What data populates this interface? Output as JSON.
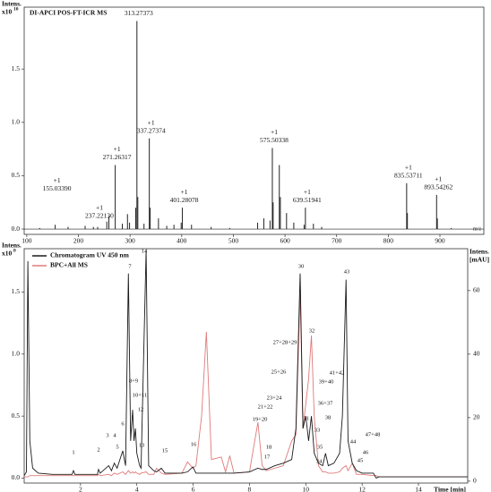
{
  "chart_data": [
    {
      "type": "stem",
      "title": "DI-APCI POS-FT-ICR MS",
      "y_label": "Intens.",
      "y_scale": "x10",
      "y_scale_exp": "10",
      "x_label": "m/z",
      "color": "#222222",
      "x": [
        125,
        155.0339,
        180,
        213,
        229,
        237.2213,
        255,
        259,
        271.26317,
        285,
        295,
        299,
        311,
        313.27373,
        315,
        327,
        337.27374,
        339,
        355,
        371,
        385,
        399,
        401.28078,
        419,
        457,
        493,
        547,
        559,
        571,
        575.50338,
        577,
        589,
        591,
        603,
        617,
        637,
        639.51941,
        655,
        671,
        835.53711,
        837,
        893.54262,
        895,
        922
      ],
      "values": [
        0.01,
        0.04,
        0.02,
        0.03,
        0.02,
        0.02,
        0.07,
        0.12,
        0.6,
        0.05,
        0.14,
        0.06,
        0.2,
        1.95,
        0.3,
        0.05,
        0.85,
        0.2,
        0.1,
        0.03,
        0.04,
        0.06,
        0.2,
        0.04,
        0.02,
        0.01,
        0.06,
        0.1,
        0.08,
        0.76,
        0.25,
        0.6,
        0.3,
        0.15,
        0.06,
        0.04,
        0.2,
        0.05,
        0.02,
        0.43,
        0.15,
        0.32,
        0.1,
        0.01
      ],
      "annotations": [
        {
          "charge": "+1",
          "label": "155.03390",
          "x": 155.0339
        },
        {
          "charge": "+1",
          "label": "237.22130",
          "x": 237.2213
        },
        {
          "charge": "+1",
          "label": "271.26317",
          "x": 271.26317
        },
        {
          "label": "313.27373",
          "x": 313.27373
        },
        {
          "charge": "+1",
          "label": "337.27374",
          "x": 337.27374
        },
        {
          "charge": "+1",
          "label": "401.28078",
          "x": 401.28078
        },
        {
          "charge": "+1",
          "label": "575.50338",
          "x": 575.50338
        },
        {
          "charge": "+1",
          "label": "639.51941",
          "x": 639.51941
        },
        {
          "charge": "+1",
          "label": "835.53711",
          "x": 835.53711
        },
        {
          "charge": "+1",
          "label": "893.54262",
          "x": 893.54262
        }
      ],
      "xlim": [
        95,
        985
      ],
      "xticks": [
        100,
        200,
        300,
        400,
        500,
        600,
        700,
        800,
        900
      ],
      "ylim": [
        -0.05,
        2.08
      ],
      "yticks": [
        {
          "value": 0,
          "label": "0.0"
        },
        {
          "value": 0.5,
          "label": "0.5"
        },
        {
          "value": 1,
          "label": "1.0"
        },
        {
          "value": 1.5,
          "label": "1.5"
        }
      ]
    },
    {
      "type": "line",
      "y_label": "Intens.",
      "y_scale": "x10",
      "y_scale_exp": "8",
      "y2_label": "Intens.",
      "y2_unit": "[mAU]",
      "x_label": "Time [min]",
      "x": [
        0,
        0.08,
        0.13,
        0.2,
        0.3,
        0.5,
        1.0,
        1.7,
        1.75,
        1.8,
        2.6,
        2.64,
        2.7,
        3.0,
        3.1,
        3.2,
        3.3,
        3.5,
        3.6,
        3.7,
        3.78,
        3.85,
        3.9,
        3.95,
        4.0,
        4.1,
        4.15,
        4.33,
        4.42,
        4.6,
        4.7,
        4.87,
        5.0,
        5.6,
        5.8,
        5.99,
        6.1,
        6.3,
        6.47,
        6.65,
        7.0,
        7.15,
        7.3,
        7.45,
        8.0,
        8.3,
        8.45,
        8.6,
        8.9,
        9.2,
        9.5,
        9.65,
        9.8,
        9.9,
        10.0,
        10.1,
        10.2,
        10.3,
        10.45,
        10.6,
        10.7,
        10.8,
        11.0,
        11.2,
        11.3,
        11.43,
        11.5,
        11.65,
        11.8,
        12.0,
        12.4,
        12.5,
        12.6,
        15.75
      ],
      "series": [
        {
          "name": "Chromatogram UV 450 nm",
          "color": "#1a1a1a",
          "values": [
            0.02,
            0.05,
            1.75,
            0.3,
            0.08,
            0.04,
            0.03,
            0.03,
            0.06,
            0.03,
            0.03,
            0.07,
            0.04,
            0.1,
            0.06,
            0.12,
            0.08,
            0.22,
            0.1,
            1.65,
            0.3,
            0.55,
            0.3,
            0.4,
            0.2,
            0.1,
            0.08,
            1.84,
            0.1,
            0.06,
            0.05,
            0.08,
            0.04,
            0.04,
            0.05,
            0.09,
            0.04,
            0.04,
            0.04,
            0.04,
            0.04,
            0.04,
            0.04,
            0.04,
            0.05,
            0.08,
            0.07,
            0.07,
            0.1,
            0.12,
            0.15,
            0.4,
            1.65,
            0.4,
            0.5,
            0.3,
            0.5,
            0.2,
            0.12,
            0.1,
            0.2,
            0.1,
            0.12,
            0.2,
            0.5,
            1.6,
            0.3,
            0.12,
            0.06,
            0.04,
            0.04,
            0,
            0.01,
            0.01
          ]
        },
        {
          "name": "BPC+All MS",
          "color": "#e07a7a",
          "values": [
            0.01,
            0.01,
            0.01,
            0.02,
            0.02,
            0.02,
            0.02,
            0.02,
            0.02,
            0.02,
            0.02,
            0.03,
            0.02,
            0.03,
            0.02,
            0.04,
            0.03,
            0.05,
            0.03,
            0.06,
            0.04,
            0.05,
            0.04,
            0.05,
            0.04,
            0.03,
            0.04,
            0.05,
            0.03,
            0.03,
            0.08,
            0.04,
            0.03,
            0.04,
            0.13,
            0.08,
            0.1,
            0.5,
            1.18,
            0.15,
            0.17,
            0.05,
            0.18,
            0.04,
            0.05,
            0.45,
            0.1,
            0.06,
            0.08,
            0.1,
            0.3,
            0.35,
            1.5,
            0.4,
            0.6,
            0.8,
            1.15,
            0.5,
            0.1,
            0.05,
            0.05,
            0.04,
            0.04,
            0.05,
            0.08,
            0.1,
            0.06,
            0.12,
            0.03,
            0.03,
            0.02,
            0.02,
            0.01,
            0.01
          ]
        }
      ],
      "peak_labels": [
        "1",
        "2",
        "3",
        "4",
        "5",
        "6",
        "7",
        "8+9",
        "10+11",
        "12",
        "13",
        "14",
        "15",
        "16",
        "17",
        "18",
        "19+20",
        "21+22",
        "23+24",
        "25+26",
        "27+28+29",
        "30",
        "31",
        "32",
        "33",
        "34",
        "35",
        "36+37",
        "38",
        "39+40",
        "41+42",
        "43",
        "44",
        "45",
        "46",
        "47+48"
      ],
      "xlim": [
        0,
        15.75
      ],
      "xticks": [
        2,
        4,
        6,
        8,
        10,
        12,
        14
      ],
      "ylim": [
        -0.04,
        1.85
      ],
      "yticks": [
        {
          "value": 0,
          "label": "0.0"
        },
        {
          "value": 0.5,
          "label": "0.5"
        },
        {
          "value": 1,
          "label": "1.0"
        },
        {
          "value": 1.5,
          "label": "1.5"
        }
      ],
      "y2lim": [
        -0.6,
        73.2
      ],
      "y2ticks": [
        0,
        20,
        40,
        60
      ]
    }
  ]
}
